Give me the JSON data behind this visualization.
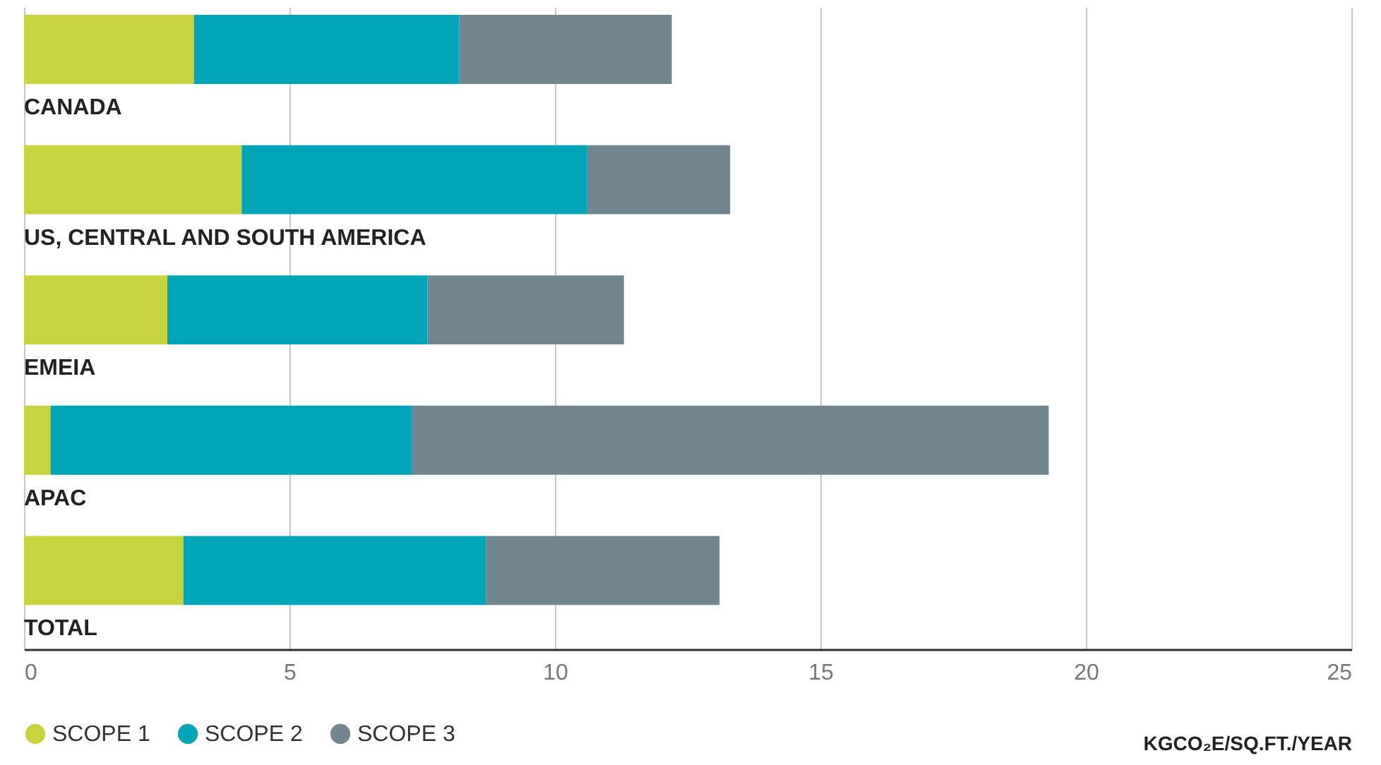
{
  "chart_data": {
    "type": "bar",
    "orientation": "horizontal",
    "stacked": true,
    "categories": [
      "CANADA",
      "US, CENTRAL AND SOUTH AMERICA",
      "EMEIA",
      "APAC",
      "TOTAL"
    ],
    "series": [
      {
        "name": "SCOPE 1",
        "color": "#c8d43e",
        "values": [
          3.2,
          4.1,
          2.7,
          0.5,
          3.0
        ]
      },
      {
        "name": "SCOPE 2",
        "color": "#00a6b8",
        "values": [
          5.0,
          6.5,
          4.9,
          6.8,
          5.7
        ]
      },
      {
        "name": "SCOPE 3",
        "color": "#71868e",
        "values": [
          4.0,
          2.7,
          3.7,
          12.0,
          4.4
        ]
      }
    ],
    "xlabel": "KGCO₂E/SQ.FT./YEAR",
    "xlim": [
      0,
      25
    ],
    "xticks": [
      0,
      5,
      10,
      15,
      20,
      25
    ],
    "grid": "x",
    "legend": "bottom left"
  }
}
